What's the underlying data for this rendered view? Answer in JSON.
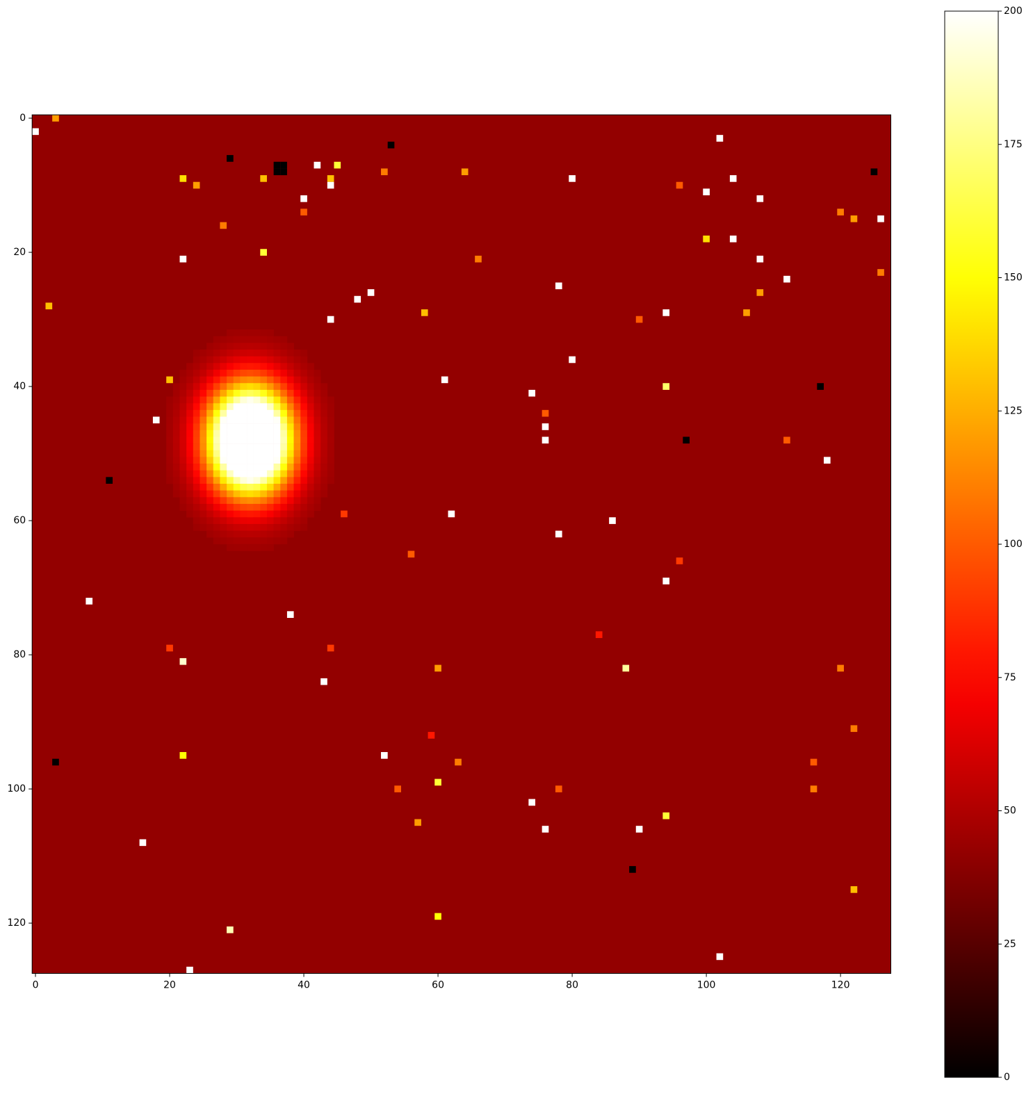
{
  "chart_data": {
    "type": "heatmap",
    "cmap": "hot",
    "xlim": [
      -0.5,
      127.5
    ],
    "ylim": [
      127.5,
      -0.5
    ],
    "xticks": [
      0,
      20,
      40,
      60,
      80,
      100,
      120
    ],
    "yticks": [
      0,
      20,
      40,
      60,
      80,
      100,
      120
    ],
    "clim": [
      0,
      200
    ],
    "cticks": [
      0,
      25,
      50,
      75,
      100,
      125,
      150,
      175,
      200
    ],
    "fill_value": 42,
    "sources": [
      {
        "x": 32,
        "y": 48,
        "amplitude": 280,
        "sigma_x": 4.3,
        "sigma_y": 5.5
      }
    ],
    "pixels": [
      {
        "x": 0,
        "y": 2,
        "value": 200
      },
      {
        "x": 3,
        "y": 0,
        "value": 120
      },
      {
        "x": 22,
        "y": 9,
        "value": 140
      },
      {
        "x": 24,
        "y": 10,
        "value": 120
      },
      {
        "x": 34,
        "y": 9,
        "value": 130
      },
      {
        "x": 29,
        "y": 6,
        "value": 0
      },
      {
        "x": 36,
        "y": 7,
        "value": 0
      },
      {
        "x": 37,
        "y": 7,
        "value": 0
      },
      {
        "x": 36,
        "y": 8,
        "value": 0
      },
      {
        "x": 37,
        "y": 8,
        "value": 0
      },
      {
        "x": 42,
        "y": 7,
        "value": 200
      },
      {
        "x": 45,
        "y": 7,
        "value": 160
      },
      {
        "x": 44,
        "y": 9,
        "value": 130
      },
      {
        "x": 44,
        "y": 10,
        "value": 200
      },
      {
        "x": 40,
        "y": 12,
        "value": 200
      },
      {
        "x": 40,
        "y": 14,
        "value": 100
      },
      {
        "x": 52,
        "y": 8,
        "value": 110
      },
      {
        "x": 53,
        "y": 4,
        "value": 0
      },
      {
        "x": 64,
        "y": 8,
        "value": 120
      },
      {
        "x": 80,
        "y": 9,
        "value": 200
      },
      {
        "x": 102,
        "y": 3,
        "value": 200
      },
      {
        "x": 104,
        "y": 9,
        "value": 200
      },
      {
        "x": 100,
        "y": 11,
        "value": 200
      },
      {
        "x": 108,
        "y": 12,
        "value": 200
      },
      {
        "x": 96,
        "y": 10,
        "value": 100
      },
      {
        "x": 120,
        "y": 14,
        "value": 110
      },
      {
        "x": 122,
        "y": 15,
        "value": 120
      },
      {
        "x": 126,
        "y": 15,
        "value": 200
      },
      {
        "x": 125,
        "y": 8,
        "value": 0
      },
      {
        "x": 100,
        "y": 18,
        "value": 140
      },
      {
        "x": 104,
        "y": 18,
        "value": 200
      },
      {
        "x": 34,
        "y": 20,
        "value": 160
      },
      {
        "x": 22,
        "y": 21,
        "value": 200
      },
      {
        "x": 28,
        "y": 16,
        "value": 110
      },
      {
        "x": 66,
        "y": 21,
        "value": 110
      },
      {
        "x": 108,
        "y": 21,
        "value": 200
      },
      {
        "x": 112,
        "y": 24,
        "value": 200
      },
      {
        "x": 126,
        "y": 23,
        "value": 110
      },
      {
        "x": 78,
        "y": 25,
        "value": 200
      },
      {
        "x": 108,
        "y": 26,
        "value": 120
      },
      {
        "x": 50,
        "y": 26,
        "value": 200
      },
      {
        "x": 48,
        "y": 27,
        "value": 200
      },
      {
        "x": 2,
        "y": 28,
        "value": 130
      },
      {
        "x": 58,
        "y": 29,
        "value": 130
      },
      {
        "x": 44,
        "y": 30,
        "value": 200
      },
      {
        "x": 94,
        "y": 29,
        "value": 200
      },
      {
        "x": 106,
        "y": 29,
        "value": 120
      },
      {
        "x": 90,
        "y": 30,
        "value": 100
      },
      {
        "x": 80,
        "y": 36,
        "value": 200
      },
      {
        "x": 20,
        "y": 39,
        "value": 130
      },
      {
        "x": 61,
        "y": 39,
        "value": 200
      },
      {
        "x": 94,
        "y": 40,
        "value": 170
      },
      {
        "x": 117,
        "y": 40,
        "value": 0
      },
      {
        "x": 74,
        "y": 41,
        "value": 200
      },
      {
        "x": 18,
        "y": 45,
        "value": 200
      },
      {
        "x": 76,
        "y": 44,
        "value": 100
      },
      {
        "x": 76,
        "y": 46,
        "value": 200
      },
      {
        "x": 76,
        "y": 48,
        "value": 200
      },
      {
        "x": 97,
        "y": 48,
        "value": 0
      },
      {
        "x": 112,
        "y": 48,
        "value": 100
      },
      {
        "x": 118,
        "y": 51,
        "value": 200
      },
      {
        "x": 11,
        "y": 54,
        "value": 0
      },
      {
        "x": 62,
        "y": 59,
        "value": 200
      },
      {
        "x": 86,
        "y": 60,
        "value": 200
      },
      {
        "x": 46,
        "y": 59,
        "value": 90
      },
      {
        "x": 78,
        "y": 62,
        "value": 200
      },
      {
        "x": 56,
        "y": 65,
        "value": 100
      },
      {
        "x": 96,
        "y": 66,
        "value": 90
      },
      {
        "x": 94,
        "y": 69,
        "value": 200
      },
      {
        "x": 8,
        "y": 72,
        "value": 200
      },
      {
        "x": 38,
        "y": 74,
        "value": 200
      },
      {
        "x": 84,
        "y": 77,
        "value": 80
      },
      {
        "x": 20,
        "y": 79,
        "value": 90
      },
      {
        "x": 44,
        "y": 79,
        "value": 90
      },
      {
        "x": 22,
        "y": 81,
        "value": 190
      },
      {
        "x": 60,
        "y": 82,
        "value": 120
      },
      {
        "x": 88,
        "y": 82,
        "value": 180
      },
      {
        "x": 120,
        "y": 82,
        "value": 110
      },
      {
        "x": 43,
        "y": 84,
        "value": 200
      },
      {
        "x": 122,
        "y": 91,
        "value": 110
      },
      {
        "x": 59,
        "y": 92,
        "value": 80
      },
      {
        "x": 22,
        "y": 95,
        "value": 150
      },
      {
        "x": 3,
        "y": 96,
        "value": 0
      },
      {
        "x": 52,
        "y": 95,
        "value": 200
      },
      {
        "x": 63,
        "y": 96,
        "value": 110
      },
      {
        "x": 116,
        "y": 96,
        "value": 100
      },
      {
        "x": 60,
        "y": 99,
        "value": 160
      },
      {
        "x": 54,
        "y": 100,
        "value": 100
      },
      {
        "x": 78,
        "y": 100,
        "value": 100
      },
      {
        "x": 116,
        "y": 100,
        "value": 110
      },
      {
        "x": 74,
        "y": 102,
        "value": 200
      },
      {
        "x": 94,
        "y": 104,
        "value": 160
      },
      {
        "x": 57,
        "y": 105,
        "value": 120
      },
      {
        "x": 76,
        "y": 106,
        "value": 200
      },
      {
        "x": 90,
        "y": 106,
        "value": 200
      },
      {
        "x": 16,
        "y": 108,
        "value": 200
      },
      {
        "x": 89,
        "y": 112,
        "value": 0
      },
      {
        "x": 122,
        "y": 115,
        "value": 130
      },
      {
        "x": 60,
        "y": 119,
        "value": 150
      },
      {
        "x": 29,
        "y": 121,
        "value": 185
      },
      {
        "x": 102,
        "y": 125,
        "value": 200
      },
      {
        "x": 23,
        "y": 127,
        "value": 200
      }
    ]
  }
}
